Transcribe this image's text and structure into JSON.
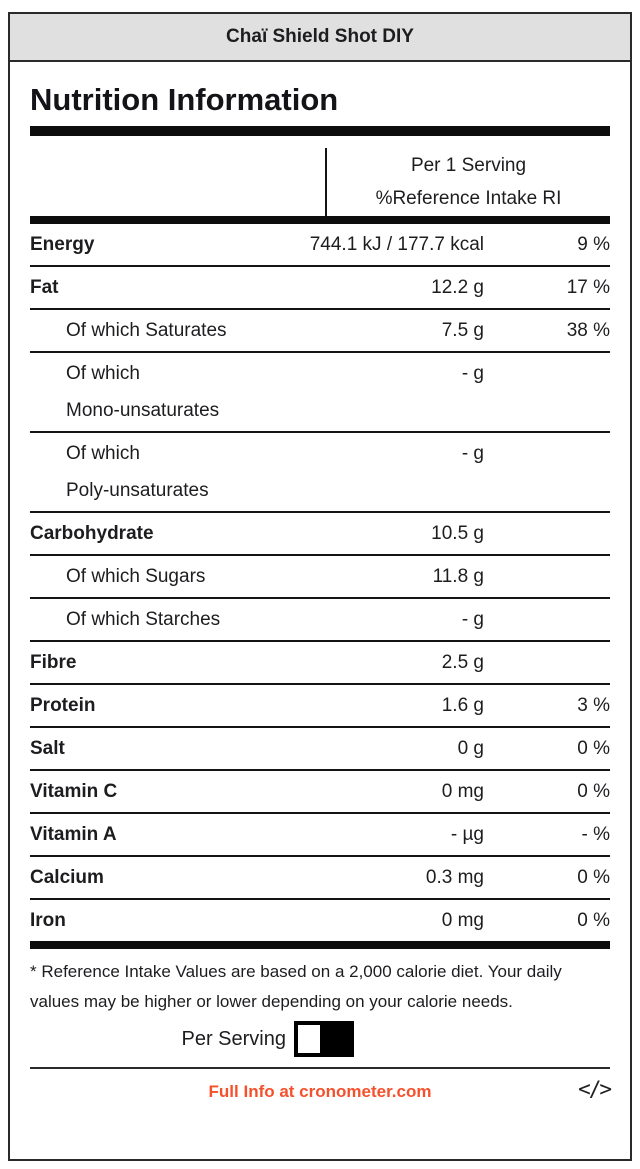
{
  "header": {
    "title": "Chaï Shield Shot DIY"
  },
  "label": {
    "title": "Nutrition Information",
    "columns": {
      "line1": "Per 1 Serving",
      "line2": "%Reference Intake RI"
    },
    "rows": [
      {
        "lines": [
          "Energy"
        ],
        "bold": true,
        "indent": false,
        "amount": "744.1 kJ / 177.7 kcal",
        "percent": "9 %"
      },
      {
        "lines": [
          "Fat"
        ],
        "bold": true,
        "indent": false,
        "amount": "12.2 g",
        "percent": "17 %"
      },
      {
        "lines": [
          "Of which Saturates"
        ],
        "bold": false,
        "indent": true,
        "amount": "7.5 g",
        "percent": "38 %"
      },
      {
        "lines": [
          "Of which",
          "Mono-unsaturates"
        ],
        "bold": false,
        "indent": true,
        "amount": "- g",
        "percent": ""
      },
      {
        "lines": [
          "Of which",
          "Poly-unsaturates"
        ],
        "bold": false,
        "indent": true,
        "amount": "- g",
        "percent": ""
      },
      {
        "lines": [
          "Carbohydrate"
        ],
        "bold": true,
        "indent": false,
        "amount": "10.5 g",
        "percent": ""
      },
      {
        "lines": [
          "Of which Sugars"
        ],
        "bold": false,
        "indent": true,
        "amount": "11.8 g",
        "percent": ""
      },
      {
        "lines": [
          "Of which Starches"
        ],
        "bold": false,
        "indent": true,
        "amount": "- g",
        "percent": ""
      },
      {
        "lines": [
          "Fibre"
        ],
        "bold": true,
        "indent": false,
        "amount": "2.5 g",
        "percent": ""
      },
      {
        "lines": [
          "Protein"
        ],
        "bold": true,
        "indent": false,
        "amount": "1.6 g",
        "percent": "3 %"
      },
      {
        "lines": [
          "Salt"
        ],
        "bold": true,
        "indent": false,
        "amount": "0 g",
        "percent": "0 %"
      },
      {
        "lines": [
          "Vitamin C"
        ],
        "bold": true,
        "indent": false,
        "amount": "0 mg",
        "percent": "0 %"
      },
      {
        "lines": [
          "Vitamin A"
        ],
        "bold": true,
        "indent": false,
        "amount": "- µg",
        "percent": "- %"
      },
      {
        "lines": [
          "Calcium"
        ],
        "bold": true,
        "indent": false,
        "amount": "0.3 mg",
        "percent": "0 %"
      },
      {
        "lines": [
          "Iron"
        ],
        "bold": true,
        "indent": false,
        "amount": "0 mg",
        "percent": "0 %"
      }
    ],
    "footnote": "* Reference Intake Values are based on a 2,000 calorie diet. Your daily values may be higher or lower depending on your calorie needs.",
    "serving_toggle": {
      "label": "Per Serving"
    },
    "footer": {
      "link": "Full Info at cronometer.com",
      "code_icon": "</>"
    }
  },
  "colors": {
    "accent_orange": "#f4512c",
    "titlebar_bg": "#e0e0e0",
    "border_black": "#2a2a2a"
  }
}
